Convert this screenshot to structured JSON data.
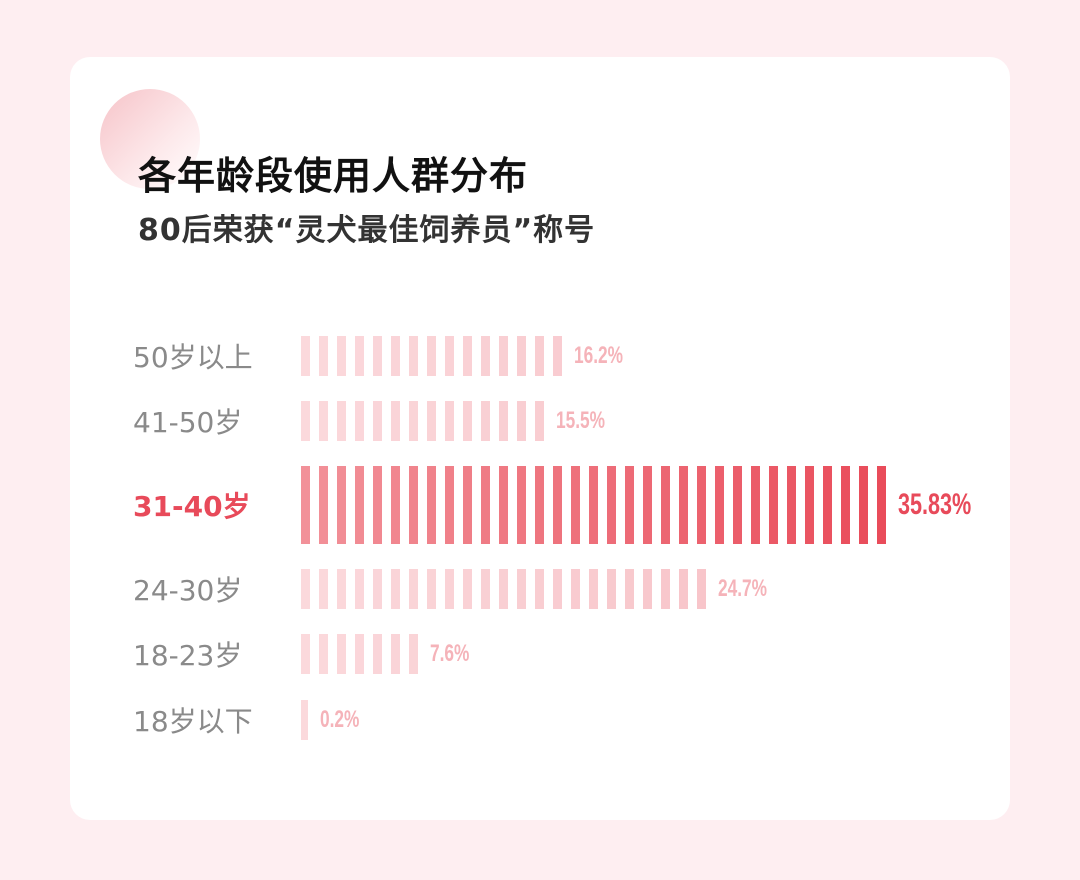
{
  "chart_data": {
    "type": "bar",
    "orientation": "horizontal",
    "title": "各年龄段使用人群分布",
    "subtitle": "80后荣获“灵犬最佳饲养员”称号",
    "categories": [
      "50岁以上",
      "41-50岁",
      "31-40岁",
      "24-30岁",
      "18-23岁",
      "18岁以下"
    ],
    "values": [
      16.2,
      15.5,
      35.83,
      24.7,
      7.6,
      0.2
    ],
    "data_labels": [
      "16.2%",
      "15.5%",
      "35.83%",
      "24.7%",
      "7.6%",
      "0.2%"
    ],
    "highlight_index": 2,
    "grid": false,
    "colors": {
      "normal_start": "#fbd9dc",
      "normal_end": "#f6bcc2",
      "highlight_start": "#f29199",
      "highlight_end": "#e94c5a",
      "label_normal": "#f5b3b9",
      "label_highlight": "#e84a5a"
    }
  }
}
